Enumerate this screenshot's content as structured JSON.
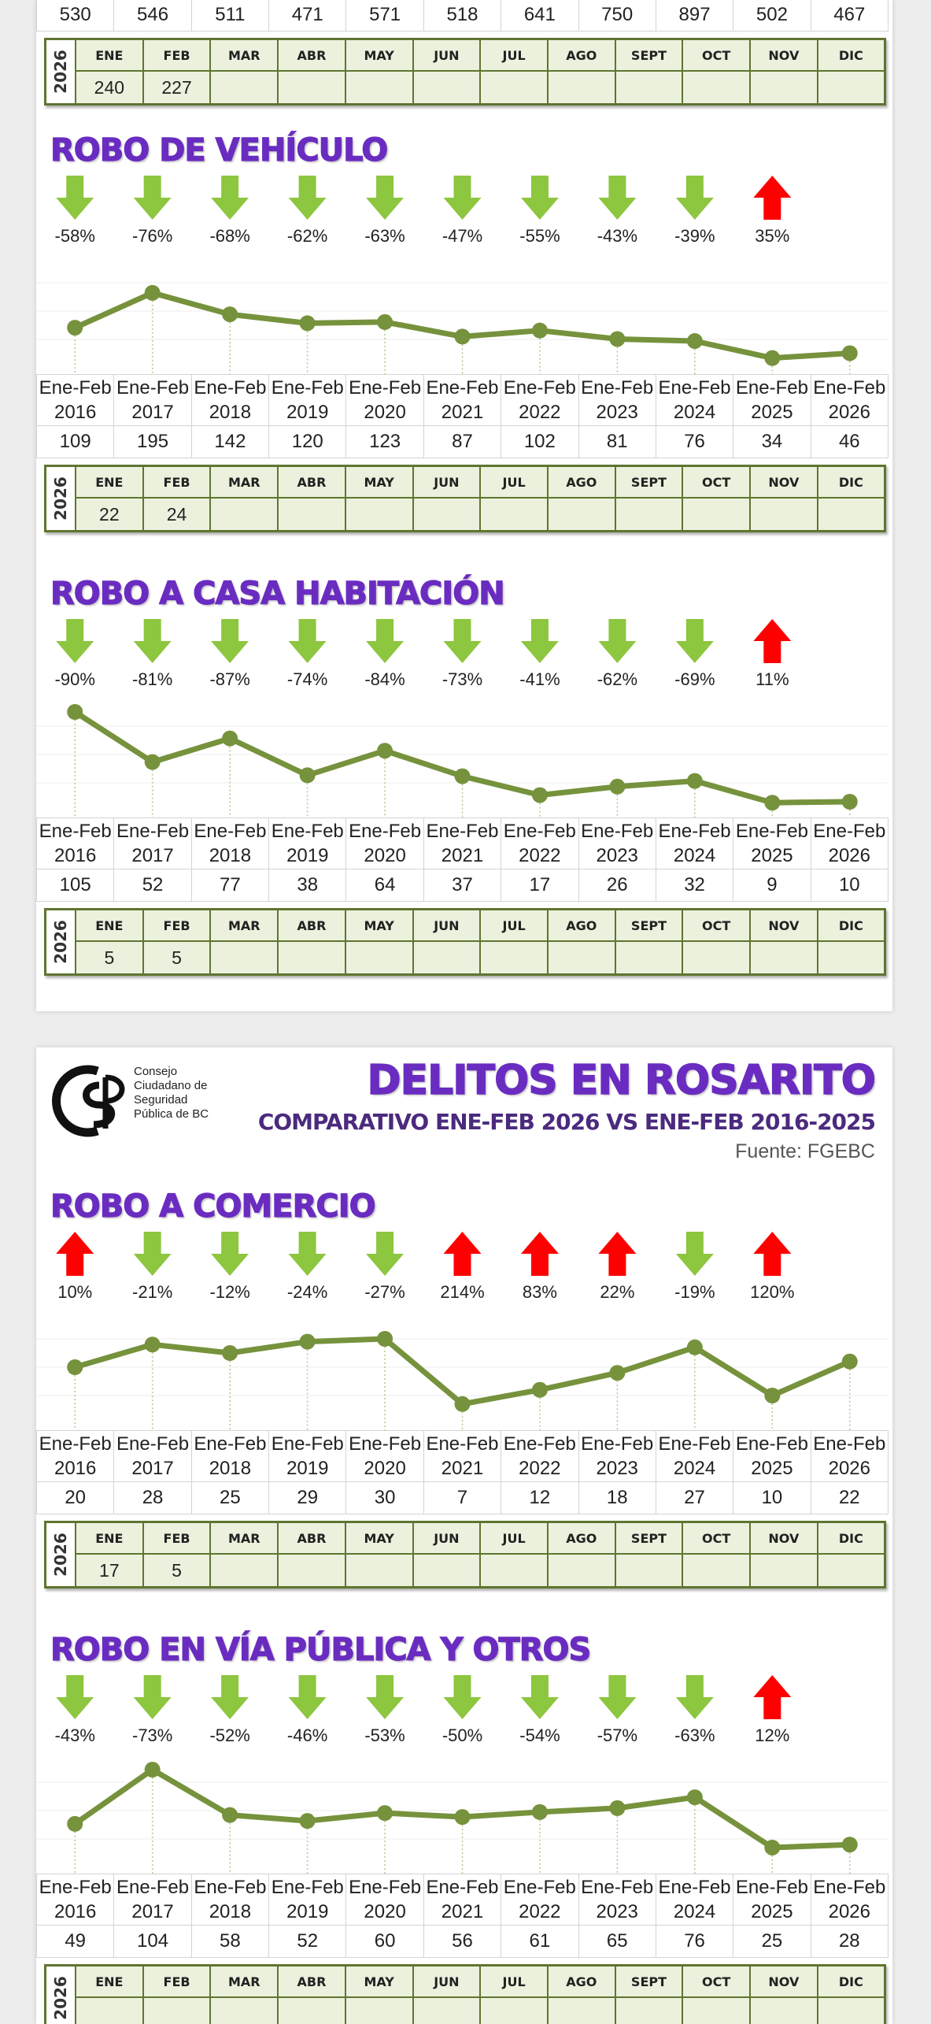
{
  "months": [
    "ENE",
    "FEB",
    "MAR",
    "ABR",
    "MAY",
    "JUN",
    "JUL",
    "AGO",
    "SEPT",
    "OCT",
    "NOV",
    "DIC"
  ],
  "year_label": "2026",
  "top_section": {
    "values": [
      530,
      546,
      511,
      471,
      571,
      518,
      641,
      750,
      897,
      502,
      467
    ],
    "month_values": [
      240,
      227
    ]
  },
  "header": {
    "logo_text": [
      "Consejo",
      "Ciudadano de",
      "Seguridad",
      "Pública de BC"
    ],
    "title": "DELITOS EN ROSARITO",
    "subtitle": "COMPARATIVO ENE-FEB 2026 VS ENE-FEB 2016-2025",
    "source": "Fuente: FGEBC"
  },
  "chart_data": [
    {
      "type": "line",
      "title": "ROBO DE VEHÍCULO",
      "categories": [
        "Ene-Feb 2016",
        "Ene-Feb 2017",
        "Ene-Feb 2018",
        "Ene-Feb 2019",
        "Ene-Feb 2020",
        "Ene-Feb 2021",
        "Ene-Feb 2022",
        "Ene-Feb 2023",
        "Ene-Feb 2024",
        "Ene-Feb 2025",
        "Ene-Feb 2026"
      ],
      "values": [
        109,
        195,
        142,
        120,
        123,
        87,
        102,
        81,
        76,
        34,
        46
      ],
      "color": "#76923c",
      "ylim": [
        10,
        290
      ],
      "changes": {
        "values": [
          -58,
          -76,
          -68,
          -62,
          -63,
          -47,
          -55,
          -43,
          -39,
          35
        ],
        "value_labels": [
          "-58%",
          "-76%",
          "-68%",
          "-62%",
          "-63%",
          "-47%",
          "-55%",
          "-43%",
          "-39%",
          "35%"
        ],
        "up_color": "#ff0000",
        "down_color": "#8dc63f"
      },
      "month_values": [
        22,
        24
      ]
    },
    {
      "type": "line",
      "title": "ROBO A CASA HABITACIÓN",
      "categories": [
        "Ene-Feb 2016",
        "Ene-Feb 2017",
        "Ene-Feb 2018",
        "Ene-Feb 2019",
        "Ene-Feb 2020",
        "Ene-Feb 2021",
        "Ene-Feb 2022",
        "Ene-Feb 2023",
        "Ene-Feb 2024",
        "Ene-Feb 2025",
        "Ene-Feb 2026"
      ],
      "values": [
        105,
        52,
        77,
        38,
        64,
        37,
        17,
        26,
        32,
        9,
        10
      ],
      "color": "#76923c",
      "ylim": [
        0,
        120
      ],
      "changes": {
        "values": [
          -90,
          -81,
          -87,
          -74,
          -84,
          -73,
          -41,
          -62,
          -69,
          11
        ],
        "value_labels": [
          "-90%",
          "-81%",
          "-87%",
          "-74%",
          "-84%",
          "-73%",
          "-41%",
          "-62%",
          "-69%",
          "11%"
        ],
        "up_color": "#ff0000",
        "down_color": "#8dc63f"
      },
      "month_values": [
        5,
        5
      ]
    },
    {
      "type": "line",
      "title": "ROBO A COMERCIO",
      "categories": [
        "Ene-Feb 2016",
        "Ene-Feb 2017",
        "Ene-Feb 2018",
        "Ene-Feb 2019",
        "Ene-Feb 2020",
        "Ene-Feb 2021",
        "Ene-Feb 2022",
        "Ene-Feb 2023",
        "Ene-Feb 2024",
        "Ene-Feb 2025",
        "Ene-Feb 2026"
      ],
      "values": [
        20,
        28,
        25,
        29,
        30,
        7,
        12,
        18,
        27,
        10,
        22
      ],
      "color": "#76923c",
      "ylim": [
        0,
        40
      ],
      "changes": {
        "values": [
          10,
          -21,
          -12,
          -24,
          -27,
          214,
          83,
          22,
          -19,
          120
        ],
        "value_labels": [
          "10%",
          "-21%",
          "-12%",
          "-24%",
          "-27%",
          "214%",
          "83%",
          "22%",
          "-19%",
          "120%"
        ],
        "up_color": "#ff0000",
        "down_color": "#8dc63f"
      },
      "month_values": [
        17,
        5
      ]
    },
    {
      "type": "line",
      "title": "ROBO EN VÍA PÚBLICA Y OTROS",
      "categories": [
        "Ene-Feb 2016",
        "Ene-Feb 2017",
        "Ene-Feb 2018",
        "Ene-Feb 2019",
        "Ene-Feb 2020",
        "Ene-Feb 2021",
        "Ene-Feb 2022",
        "Ene-Feb 2023",
        "Ene-Feb 2024",
        "Ene-Feb 2025",
        "Ene-Feb 2026"
      ],
      "values": [
        49,
        104,
        58,
        52,
        60,
        56,
        61,
        65,
        76,
        25,
        28
      ],
      "color": "#76923c",
      "ylim": [
        5,
        120
      ],
      "changes": {
        "values": [
          -43,
          -73,
          -52,
          -46,
          -53,
          -50,
          -54,
          -57,
          -63,
          12
        ],
        "value_labels": [
          "-43%",
          "-73%",
          "-52%",
          "-46%",
          "-53%",
          "-50%",
          "-54%",
          "-57%",
          "-63%",
          "12%"
        ],
        "up_color": "#ff0000",
        "down_color": "#8dc63f"
      },
      "month_values": []
    }
  ]
}
